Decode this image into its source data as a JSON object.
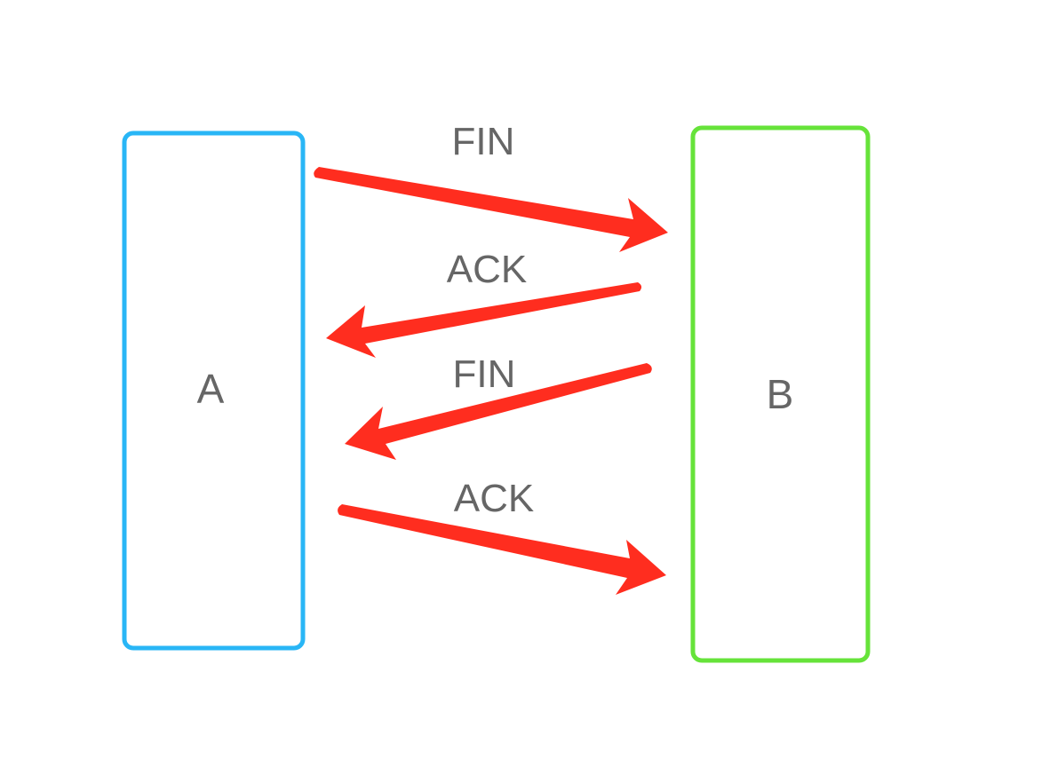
{
  "colors": {
    "node_a_border": "#29B6F6",
    "node_b_border": "#66E33A",
    "arrow": "#FF2D1F",
    "label_text": "#666666",
    "background": "#ffffff"
  },
  "nodes": {
    "a": {
      "label": "A"
    },
    "b": {
      "label": "B"
    }
  },
  "messages": [
    {
      "label": "FIN",
      "from": "A",
      "to": "B"
    },
    {
      "label": "ACK",
      "from": "B",
      "to": "A"
    },
    {
      "label": "FIN",
      "from": "B",
      "to": "A"
    },
    {
      "label": "ACK",
      "from": "A",
      "to": "B"
    }
  ]
}
